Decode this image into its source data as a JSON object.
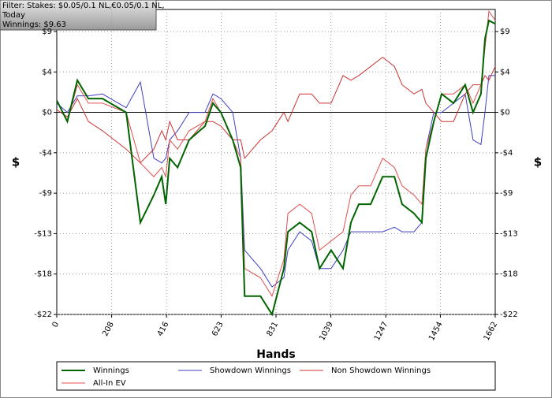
{
  "chart_data": {
    "type": "line",
    "filter_lines": [
      "Filter: Stakes: $0.05/0.1 NL,€0.05/0.1 NL,",
      "Today",
      "Winnings: $9.63"
    ],
    "xlabel": "Hands",
    "ylabel": "$",
    "x": [
      0,
      40,
      78,
      120,
      173,
      263,
      317,
      368,
      398,
      413,
      428,
      458,
      502,
      562,
      592,
      622,
      667,
      697,
      712,
      772,
      816,
      861,
      876,
      921,
      966,
      996,
      1040,
      1085,
      1115,
      1145,
      1190,
      1235,
      1280,
      1309,
      1354,
      1384,
      1399,
      1429,
      1459,
      1504,
      1548,
      1578,
      1608,
      1623,
      1638,
      1662
    ],
    "series": [
      {
        "name": "Winnings",
        "color": "#006400",
        "values": [
          1.3,
          -1,
          3.5,
          1.5,
          1.5,
          0,
          -12,
          -9,
          -7,
          -10,
          -5,
          -6,
          -3,
          -1.5,
          1,
          0,
          -3,
          -6,
          -20,
          -20,
          -22,
          -17,
          -13,
          -12,
          -13,
          -17,
          -15,
          -17,
          -12,
          -10,
          -10,
          -7,
          -7,
          -10,
          -11,
          -12,
          -5,
          -1,
          2,
          1,
          3,
          0,
          2,
          8,
          10,
          9.63
        ]
      },
      {
        "name": "Showdown Winnings",
        "color": "#3f3fbf",
        "values": [
          1,
          0,
          1.8,
          1.8,
          2,
          0.5,
          3.3,
          -5,
          -5.5,
          -5,
          -3,
          -2,
          0,
          0,
          2,
          1.5,
          0,
          -5,
          -15,
          -17,
          -19,
          -18,
          -15,
          -13,
          -14,
          -17,
          -17,
          -15,
          -13,
          -13,
          -13,
          -13,
          -12.5,
          -13,
          -13,
          -12,
          -4,
          0,
          0,
          1,
          2,
          -3,
          -3.5,
          0,
          4,
          4
        ]
      },
      {
        "name": "Non Showdown Winnings",
        "color": "#cc3333",
        "values": [
          0.3,
          -0.5,
          1.5,
          -1,
          -2,
          -4,
          -5.5,
          -4,
          -2,
          -3,
          -1,
          -3,
          -3,
          -1,
          -1,
          -1.5,
          -3,
          -3,
          -5,
          -3,
          -2,
          0,
          -1,
          2,
          2,
          1,
          1,
          4,
          3.5,
          4,
          5,
          6,
          5,
          3,
          2,
          2.5,
          1,
          0,
          -1,
          -1,
          2,
          3,
          3,
          4,
          3.5,
          5
        ]
      },
      {
        "name": "All-In EV",
        "color": "#e05050",
        "values": [
          1.3,
          -1,
          3,
          1,
          1,
          0,
          -5.5,
          -7,
          -6,
          -7,
          -3,
          -4,
          -2,
          -1,
          1.5,
          0,
          -3,
          -5,
          -17,
          -18,
          -20,
          -16,
          -11,
          -10,
          -11,
          -15,
          -14,
          -13,
          -9,
          -8,
          -8,
          -5,
          -6,
          -8,
          -9,
          -10,
          -4,
          -1,
          2,
          2,
          3,
          1,
          3,
          7,
          11,
          10
        ]
      }
    ],
    "xlim": [
      0,
      1662
    ],
    "xticks": [
      0,
      208,
      416,
      623,
      831,
      1039,
      1247,
      1454,
      1662
    ],
    "ylim": [
      -22,
      11.2
    ],
    "yticks": [
      {
        "value": -22,
        "label": "-$22"
      },
      {
        "value": -17.6,
        "label": "-$18"
      },
      {
        "value": -13.2,
        "label": "-$13"
      },
      {
        "value": -8.8,
        "label": "-$9"
      },
      {
        "value": -4.4,
        "label": "-$4"
      },
      {
        "value": 0,
        "label": "$0"
      },
      {
        "value": 4.4,
        "label": "$4"
      },
      {
        "value": 8.8,
        "label": "$9"
      }
    ],
    "grid": true
  }
}
